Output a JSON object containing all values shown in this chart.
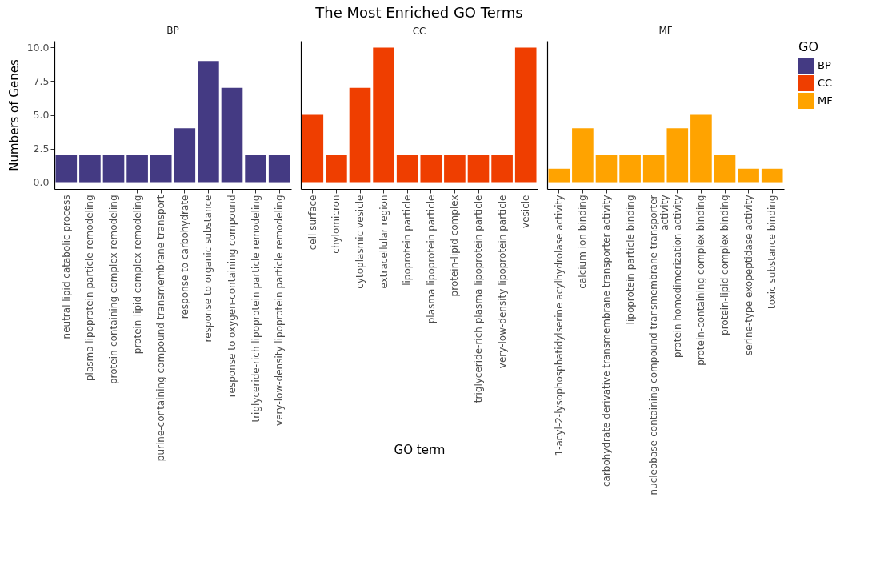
{
  "chart_data": [
    {
      "type": "bar",
      "subtitle": "BP",
      "ylabel": "Numbers of Genes",
      "grid": false,
      "ylim": [
        -0.5,
        10.5
      ],
      "yticks": [
        {
          "value": 0,
          "label": "0.0"
        },
        {
          "value": 2.5,
          "label": "2.5"
        },
        {
          "value": 5,
          "label": "5.0"
        },
        {
          "value": 7.5,
          "label": "7.5"
        },
        {
          "value": 10,
          "label": "10.0"
        }
      ],
      "categories": [
        "neutral lipid catabolic process",
        "plasma lipoprotein particle remodeling",
        "protein-containing complex remodeling",
        "protein-lipid complex remodeling",
        "purine-containing compound transmembrane transport",
        "response to carbohydrate",
        "response to organic substance",
        "response to oxygen-containing compound",
        "triglyceride-rich lipoprotein particle remodeling",
        "very-low-density lipoprotein particle remodeling"
      ],
      "series": [
        {
          "name": "BP",
          "color": "#443a83",
          "values": [
            2,
            2,
            2,
            2,
            2,
            4,
            9,
            7,
            2,
            2
          ]
        }
      ]
    },
    {
      "type": "bar",
      "title": "The Most Enriched GO Terms",
      "subtitle": "CC",
      "xlabel": "GO term",
      "grid": false,
      "tick_labels": "x",
      "ylim": [
        -0.5,
        10.5
      ],
      "categories": [
        "cell surface",
        "chylomicron",
        "cytoplasmic vesicle",
        "extracellular region",
        "lipoprotein particle",
        "plasma lipoprotein particle",
        "protein-lipid complex",
        "triglyceride-rich plasma lipoprotein particle",
        "very-low-density lipoprotein particle",
        "vesicle"
      ],
      "series": [
        {
          "name": "CC",
          "color": "#ef3e00",
          "values": [
            5,
            2,
            7,
            10,
            2,
            2,
            2,
            2,
            2,
            10
          ]
        }
      ]
    },
    {
      "type": "bar",
      "subtitle": "MF",
      "legend": "right",
      "legend_title": "GO",
      "grid": false,
      "tick_labels": "x",
      "ylim": [
        -0.5,
        10.5
      ],
      "categories": [
        "1-acyl-2-lysophosphatidylserine acylhydrolase activity",
        "calcium ion binding",
        "carbohydrate derivative transmembrane transporter activity",
        "lipoprotein particle binding",
        "nucleobase-containing compound transmembrane transporter activity",
        "protein homodimerization activity",
        "protein-containing complex binding",
        "protein-lipid complex binding",
        "serine-type exopeptidase activity",
        "toxic substance binding"
      ],
      "series": [
        {
          "name": "MF",
          "color": "#ffa300",
          "values": [
            1,
            4,
            2,
            2,
            2,
            4,
            5,
            2,
            1,
            1
          ]
        }
      ]
    }
  ]
}
